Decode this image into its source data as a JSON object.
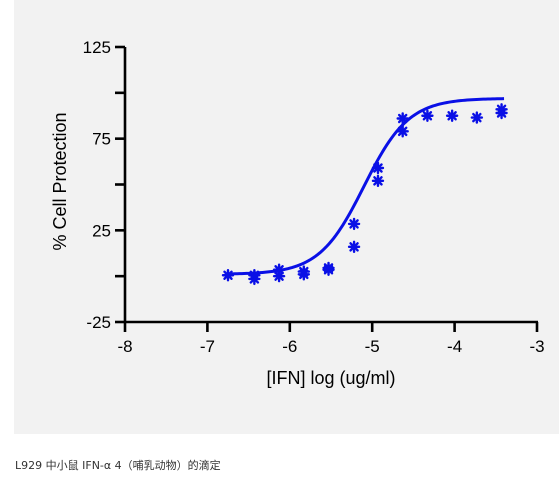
{
  "chart_data": {
    "type": "scatter",
    "xlabel": "[IFN] log (ug/ml)",
    "ylabel": "% Cell Protection",
    "xlim": [
      -8,
      -3
    ],
    "ylim": [
      -25,
      125
    ],
    "x_ticks": [
      "-8",
      "-7",
      "-6",
      "-5",
      "-4",
      "-3"
    ],
    "y_ticks": [
      "-25",
      "25",
      "75",
      "125"
    ],
    "grid": false,
    "legend": "none",
    "series_color": "#0a10e6",
    "points": [
      {
        "x": -6.75,
        "y": 0.5
      },
      {
        "x": -6.43,
        "y": -1.5
      },
      {
        "x": -6.43,
        "y": 0.5
      },
      {
        "x": -6.13,
        "y": 0.0
      },
      {
        "x": -6.13,
        "y": 3.5
      },
      {
        "x": -5.83,
        "y": 1.0
      },
      {
        "x": -5.83,
        "y": 2.5
      },
      {
        "x": -5.53,
        "y": 3.5
      },
      {
        "x": -5.53,
        "y": 4.5
      },
      {
        "x": -5.22,
        "y": 16.0
      },
      {
        "x": -5.22,
        "y": 28.5
      },
      {
        "x": -4.93,
        "y": 52.0
      },
      {
        "x": -4.93,
        "y": 59.0
      },
      {
        "x": -4.63,
        "y": 79.0
      },
      {
        "x": -4.63,
        "y": 86.0
      },
      {
        "x": -4.33,
        "y": 87.5
      },
      {
        "x": -4.03,
        "y": 87.5
      },
      {
        "x": -3.73,
        "y": 86.5
      },
      {
        "x": -3.43,
        "y": 89.0
      },
      {
        "x": -3.43,
        "y": 91.0
      }
    ],
    "fit_curve": {
      "bottom": 1.0,
      "top": 97.0,
      "log_ec50": -5.1,
      "hill_slope": 1.6,
      "x_start": -6.75,
      "x_end": -3.4
    }
  },
  "caption": "L929 中小鼠 IFN-α 4（哺乳动物）的滴定"
}
